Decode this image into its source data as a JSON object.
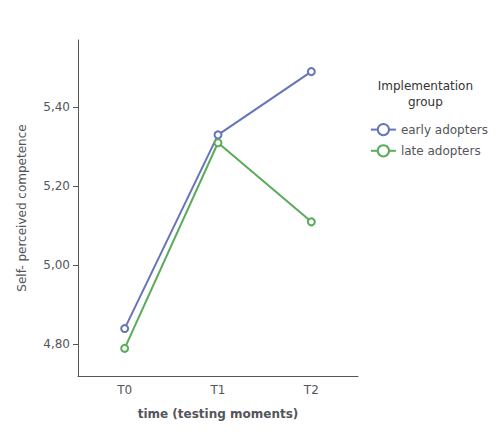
{
  "chart_data": {
    "type": "line",
    "categories": [
      "T0",
      "T1",
      "T2"
    ],
    "series": [
      {
        "name": "early adopters",
        "color": "#6674b8",
        "values": [
          4.84,
          5.33,
          5.49
        ]
      },
      {
        "name": "late adopters",
        "color": "#5aab5a",
        "values": [
          4.79,
          5.31,
          5.11
        ]
      }
    ],
    "xlabel": "time (testing moments)",
    "ylabel": "Self- perceived competence",
    "legend_title": "Implementation\ngroup",
    "ylim": [
      4.72,
      5.57
    ],
    "yticks": [
      {
        "value": 4.8,
        "label": "4,80"
      },
      {
        "value": 5.0,
        "label": "5,00"
      },
      {
        "value": 5.2,
        "label": "5,20"
      },
      {
        "value": 5.4,
        "label": "5,40"
      }
    ],
    "grid": false,
    "legend": "right",
    "marker": "circle",
    "line_style": "solid"
  }
}
